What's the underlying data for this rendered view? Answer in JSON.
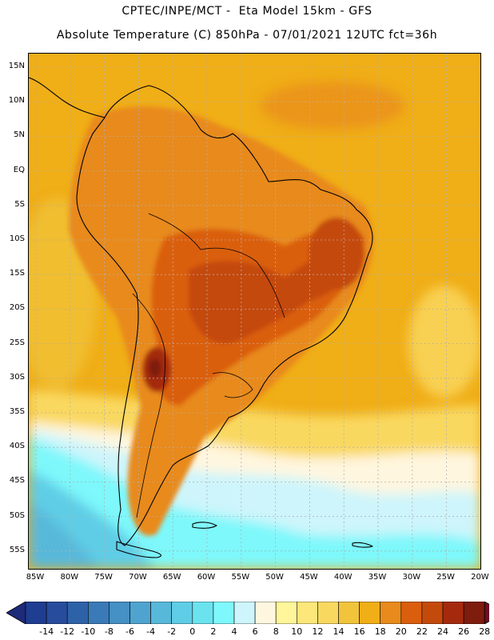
{
  "header": {
    "line1": "CPTEC/INPE/MCT -  Eta Model 15km - GFS",
    "line2": "Absolute Temperature (C) 850hPa - 07/01/2021 12UTC fct=36h"
  },
  "map": {
    "lat_labels": [
      "15N",
      "10N",
      "5N",
      "EQ",
      "5S",
      "10S",
      "15S",
      "20S",
      "25S",
      "30S",
      "35S",
      "40S",
      "45S",
      "50S",
      "55S"
    ],
    "lon_labels": [
      "85W",
      "80W",
      "75W",
      "70W",
      "65W",
      "60W",
      "55W",
      "50W",
      "45W",
      "40W",
      "35W",
      "30W",
      "25W",
      "20W"
    ],
    "colors": {
      "grid": "#b0b0b0",
      "coast": "#000000"
    }
  },
  "colorbar": {
    "labels": [
      "-14",
      "-12",
      "-10",
      "-8",
      "-6",
      "-4",
      "-2",
      "0",
      "2",
      "4",
      "6",
      "8",
      "10",
      "12",
      "14",
      "16",
      "18",
      "20",
      "22",
      "24",
      "26",
      "28"
    ],
    "colors": [
      "#1f3d91",
      "#274c9c",
      "#2e62a8",
      "#3a7ab8",
      "#4590c4",
      "#4fa4cf",
      "#58b8da",
      "#5fcde6",
      "#6be3ef",
      "#7ef8fb",
      "#cdf5fb",
      "#fff6df",
      "#fff59a",
      "#fde77a",
      "#f9d860",
      "#f1c43c",
      "#f0ae17",
      "#e88a1c",
      "#da5e0d",
      "#c44a0c",
      "#a52a0d",
      "#7e1c0e",
      "#6a0f24"
    ],
    "end_color_low": "#1e2a7a",
    "end_color_high": "#6a0f24"
  }
}
